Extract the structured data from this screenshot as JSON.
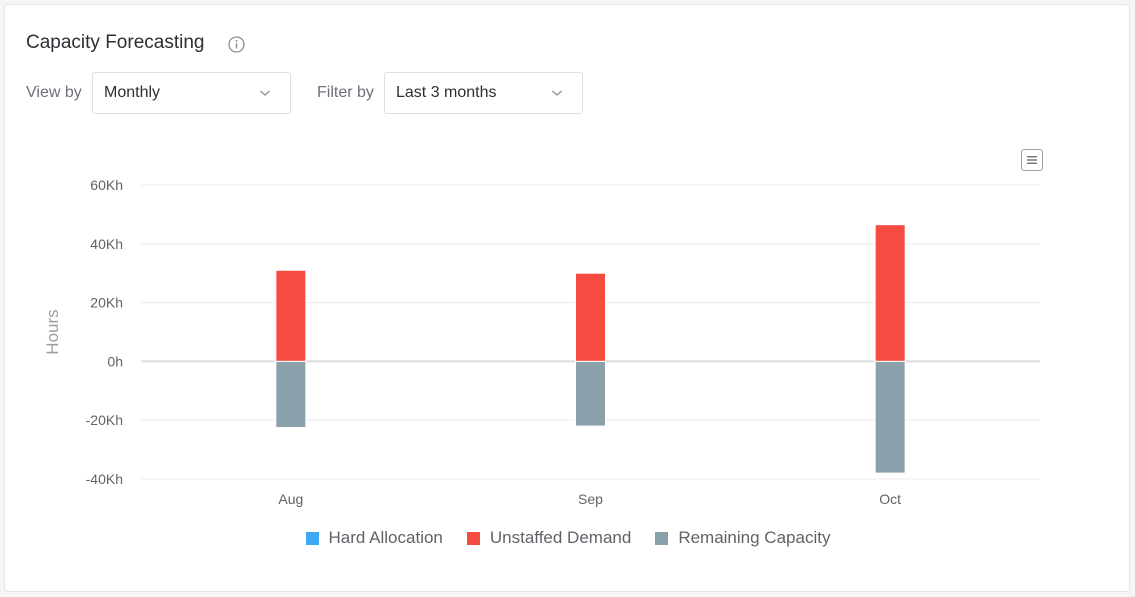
{
  "header": {
    "title": "Capacity Forecasting",
    "info_icon": "info-circle-icon"
  },
  "controls": {
    "view_by_label": "View by",
    "view_by_value": "Monthly",
    "filter_by_label": "Filter by",
    "filter_by_value": "Last 3 months"
  },
  "chart_menu_icon": "hamburger-menu-icon",
  "chart_data": {
    "type": "bar",
    "stacked": true,
    "categories": [
      "Aug",
      "Sep",
      "Oct"
    ],
    "series": [
      {
        "name": "Hard Allocation",
        "values": [
          0,
          0,
          0
        ],
        "color": "#3fa9f5"
      },
      {
        "name": "Unstaffed Demand",
        "values": [
          31000,
          30000,
          46500
        ],
        "color": "#f54b40"
      },
      {
        "name": "Remaining Capacity",
        "values": [
          -22500,
          -22000,
          -38000
        ],
        "color": "#8aa0ab"
      }
    ],
    "ylabel": "Hours",
    "xlabel": "",
    "ylim": [
      -40000,
      60000
    ],
    "yticks": [
      60000,
      40000,
      20000,
      0,
      -20000,
      -40000
    ],
    "ytick_labels": [
      "60Kh",
      "40Kh",
      "20Kh",
      "0h",
      "-20Kh",
      "-40Kh"
    ],
    "grid": true,
    "legend_position": "bottom"
  }
}
